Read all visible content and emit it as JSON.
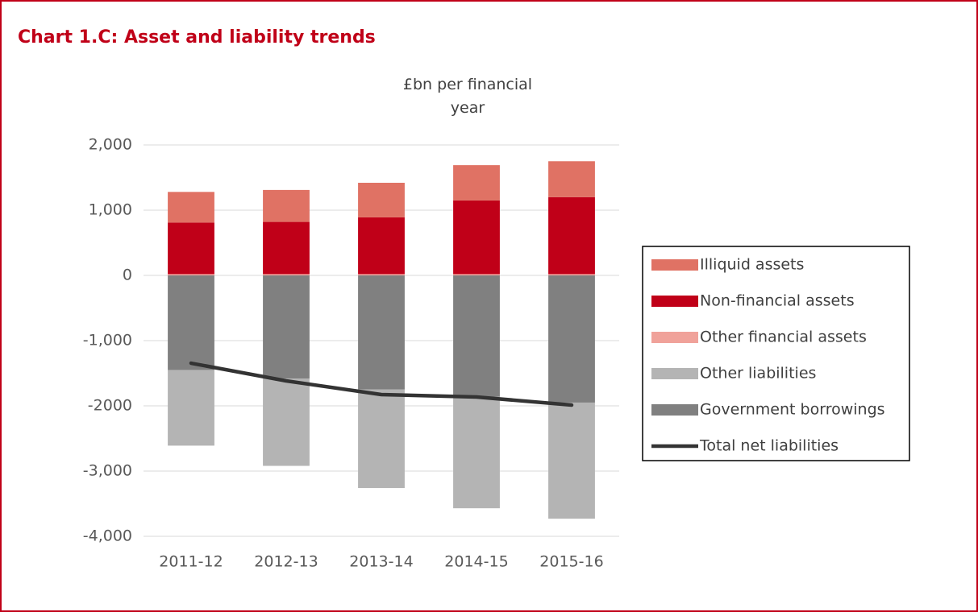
{
  "chart_data": {
    "type": "bar",
    "stacked": true,
    "title": "Chart 1.C: Asset and liability trends",
    "y_label": "£bn per financial year",
    "categories": [
      "2011-12",
      "2012-13",
      "2013-14",
      "2014-15",
      "2015-16"
    ],
    "series": [
      {
        "name": "Illiquid assets",
        "color": "#e07264",
        "values": [
          470,
          490,
          530,
          540,
          550
        ]
      },
      {
        "name": "Non-financial assets",
        "color": "#c00018",
        "values": [
          790,
          800,
          870,
          1130,
          1180
        ]
      },
      {
        "name": "Other financial assets",
        "color": "#f0a29a",
        "values": [
          20,
          20,
          20,
          20,
          20
        ]
      },
      {
        "name": "Other liabilities",
        "color": "#b4b4b4",
        "values": [
          -1160,
          -1340,
          -1510,
          -1710,
          -1780
        ]
      },
      {
        "name": "Government borrowings",
        "color": "#808080",
        "values": [
          -1450,
          -1580,
          -1750,
          -1860,
          -1950
        ]
      },
      {
        "name": "Total net liabilities",
        "type": "line",
        "color": "#333333",
        "values": [
          -1346,
          -1617,
          -1827,
          -1864,
          -1988
        ]
      }
    ],
    "ylim": [
      -4000,
      2000
    ],
    "yticks": [
      {
        "value": 2000,
        "label": "2,000"
      },
      {
        "value": 1000,
        "label": "1,000"
      },
      0,
      {
        "value": -1000,
        "label": "-1,000"
      },
      {
        "value": -2000,
        "label": "-2000"
      },
      {
        "value": -3000,
        "label": "-3,000"
      },
      {
        "value": -4000,
        "label": "-4,000"
      }
    ],
    "grid": true,
    "legend": "right"
  }
}
